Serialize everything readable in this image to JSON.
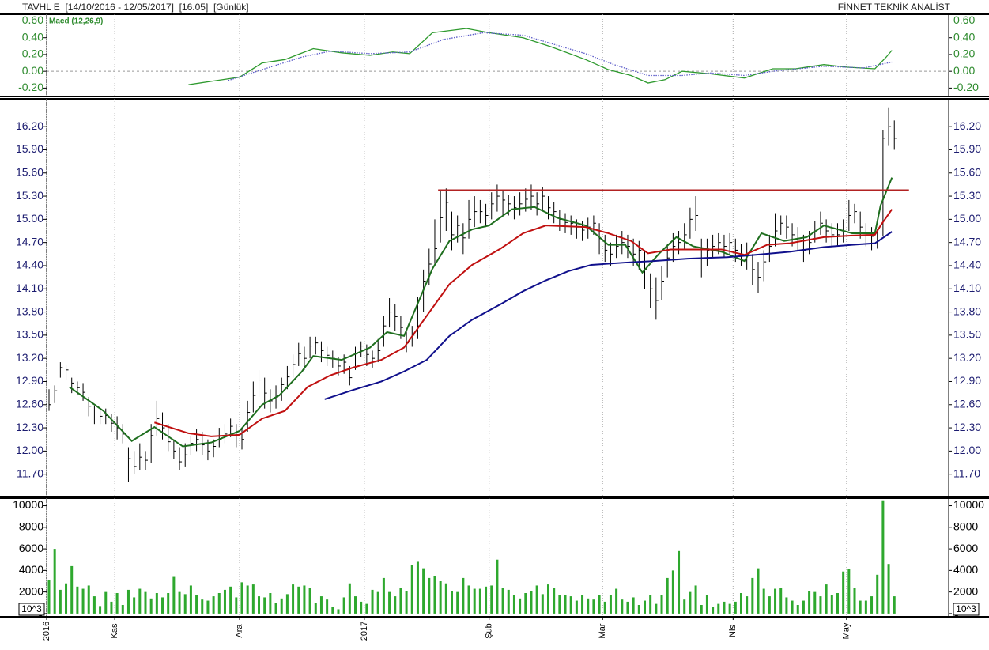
{
  "header": {
    "title": "TAVHL E  [14/10/2016 - 12/05/2017]  [16.05]  [Günlük]",
    "brand": "FİNNET TEKNİK ANALİST"
  },
  "chart_data": [
    {
      "type": "line",
      "label": "Macd (12,26,9)",
      "tick_color": "#2e8b2e",
      "xlim": [
        0,
        159
      ],
      "ylim": [
        -0.3,
        0.68
      ],
      "yticks": [
        {
          "value": 0.6,
          "label": "0.60"
        },
        {
          "value": 0.4,
          "label": "0.40"
        },
        {
          "value": 0.2,
          "label": "0.20"
        },
        {
          "value": 0,
          "label": "0.00"
        },
        {
          "value": -0.2,
          "label": "-0.20"
        }
      ],
      "zero_line": true,
      "series": [
        {
          "color": "#2e9a2e",
          "style": "solid",
          "x": [
            25,
            29,
            34,
            38,
            42,
            47,
            52,
            57,
            61,
            64,
            68,
            74,
            78,
            84,
            89,
            95,
            99,
            103,
            106,
            109,
            112,
            117,
            123,
            128,
            132,
            137,
            141,
            146,
            148,
            149
          ],
          "values": [
            -0.16,
            -0.12,
            -0.07,
            0.1,
            0.14,
            0.27,
            0.22,
            0.19,
            0.23,
            0.21,
            0.46,
            0.51,
            0.46,
            0.4,
            0.29,
            0.14,
            0.02,
            -0.05,
            -0.14,
            -0.1,
            0,
            -0.03,
            -0.08,
            0.03,
            0.03,
            0.08,
            0.05,
            0.03,
            0.17,
            0.25
          ]
        },
        {
          "color": "#5a5ac8",
          "style": "dotted",
          "x": [
            32,
            38,
            45,
            50,
            57,
            64,
            70,
            77,
            84,
            89,
            95,
            100,
            106,
            112,
            117,
            123,
            128,
            137,
            144,
            149
          ],
          "values": [
            -0.11,
            0.02,
            0.17,
            0.24,
            0.21,
            0.23,
            0.38,
            0.46,
            0.43,
            0.33,
            0.21,
            0.08,
            -0.05,
            -0.05,
            -0.02,
            -0.05,
            0,
            0.06,
            0.04,
            0.11
          ]
        }
      ]
    },
    {
      "type": "ohlc",
      "tick_color": "#1c1c70",
      "bar_color": "#000000",
      "xlim": [
        0,
        159
      ],
      "ylim": [
        11.41,
        16.56
      ],
      "yticks": [
        {
          "value": 16.2,
          "label": "16.20"
        },
        {
          "value": 15.9,
          "label": "15.90"
        },
        {
          "value": 15.6,
          "label": "15.60"
        },
        {
          "value": 15.3,
          "label": "15.30"
        },
        {
          "value": 15,
          "label": "15.00"
        },
        {
          "value": 14.7,
          "label": "14.70"
        },
        {
          "value": 14.4,
          "label": "14.40"
        },
        {
          "value": 14.1,
          "label": "14.10"
        },
        {
          "value": 13.8,
          "label": "13.80"
        },
        {
          "value": 13.5,
          "label": "13.50"
        },
        {
          "value": 13.2,
          "label": "13.20"
        },
        {
          "value": 12.9,
          "label": "12.90"
        },
        {
          "value": 12.6,
          "label": "12.60"
        },
        {
          "value": 12.3,
          "label": "12.30"
        },
        {
          "value": 12,
          "label": "12.00"
        },
        {
          "value": 11.7,
          "label": "11.70"
        }
      ],
      "high": [
        12.8,
        12.85,
        13.15,
        13.12,
        12.95,
        12.9,
        12.88,
        12.7,
        12.58,
        12.55,
        12.55,
        12.48,
        12.45,
        12.35,
        12.05,
        12.0,
        12.1,
        12.0,
        12.35,
        12.65,
        12.5,
        12.35,
        12.15,
        12.05,
        12.1,
        12.2,
        12.28,
        12.25,
        12.15,
        12.15,
        12.3,
        12.35,
        12.42,
        12.35,
        12.3,
        12.65,
        12.9,
        13.05,
        12.95,
        12.8,
        12.85,
        12.95,
        13.1,
        13.25,
        13.4,
        13.35,
        13.48,
        13.48,
        13.42,
        13.35,
        13.3,
        13.22,
        13.25,
        13.1,
        13.35,
        13.42,
        13.38,
        13.3,
        13.45,
        13.75,
        13.98,
        13.9,
        13.75,
        13.55,
        13.62,
        14.0,
        14.35,
        14.62,
        15.0,
        15.38,
        15.4,
        15.1,
        15.05,
        14.95,
        15.25,
        15.3,
        15.25,
        15.2,
        15.35,
        15.45,
        15.38,
        15.32,
        15.3,
        15.35,
        15.4,
        15.45,
        15.35,
        15.42,
        15.3,
        15.22,
        15.12,
        15.08,
        15.05,
        15.0,
        14.98,
        15.02,
        15.05,
        14.95,
        14.8,
        14.7,
        14.8,
        14.85,
        14.8,
        14.75,
        14.72,
        14.6,
        14.3,
        14.25,
        14.4,
        14.68,
        14.82,
        14.85,
        14.95,
        15.15,
        15.3,
        14.75,
        14.75,
        14.8,
        14.82,
        14.8,
        14.82,
        14.75,
        14.68,
        14.7,
        14.55,
        14.45,
        14.6,
        14.8,
        15.08,
        15.05,
        15.05,
        14.95,
        14.9,
        14.8,
        14.85,
        14.98,
        15.1,
        15.0,
        14.95,
        14.95,
        15.0,
        15.25,
        15.2,
        15.1,
        14.95,
        14.9,
        14.88,
        16.15,
        16.45,
        16.28
      ],
      "low": [
        12.52,
        12.62,
        12.95,
        12.92,
        12.75,
        12.72,
        12.65,
        12.45,
        12.35,
        12.35,
        12.35,
        12.25,
        12.15,
        12.1,
        11.6,
        11.7,
        11.75,
        11.75,
        11.85,
        12.2,
        12.15,
        12.0,
        11.9,
        11.75,
        11.8,
        11.95,
        12.0,
        11.95,
        11.88,
        11.92,
        12.05,
        12.1,
        12.18,
        12.05,
        12.02,
        12.25,
        12.5,
        12.7,
        12.55,
        12.5,
        12.55,
        12.65,
        12.8,
        12.95,
        13.1,
        13.05,
        13.2,
        13.25,
        13.15,
        13.1,
        13.08,
        12.98,
        13.0,
        12.85,
        13.05,
        13.22,
        13.1,
        13.08,
        13.15,
        13.35,
        13.6,
        13.55,
        13.45,
        13.28,
        13.35,
        13.45,
        13.8,
        14.15,
        14.4,
        14.7,
        14.85,
        14.6,
        14.7,
        14.55,
        14.75,
        14.9,
        14.95,
        14.9,
        15.0,
        15.1,
        15.05,
        15.05,
        15.0,
        15.05,
        15.1,
        15.12,
        15.05,
        15.12,
        15.0,
        14.95,
        14.85,
        14.82,
        14.8,
        14.75,
        14.72,
        14.75,
        14.8,
        14.55,
        14.45,
        14.4,
        14.5,
        14.55,
        14.5,
        14.4,
        14.35,
        14.1,
        13.85,
        13.7,
        13.95,
        14.25,
        14.45,
        14.55,
        14.62,
        14.75,
        14.85,
        14.25,
        14.4,
        14.5,
        14.55,
        14.5,
        14.55,
        14.45,
        14.4,
        14.35,
        14.15,
        14.05,
        14.2,
        14.45,
        14.65,
        14.8,
        14.75,
        14.65,
        14.6,
        14.45,
        14.55,
        14.7,
        14.8,
        14.7,
        14.65,
        14.65,
        14.7,
        14.85,
        14.95,
        14.75,
        14.65,
        14.6,
        14.62,
        14.78,
        15.95,
        15.9
      ],
      "close": [
        12.6,
        12.78,
        13.08,
        13.05,
        12.88,
        12.82,
        12.76,
        12.58,
        12.48,
        12.45,
        12.46,
        12.36,
        12.3,
        12.22,
        11.9,
        11.8,
        11.92,
        11.88,
        12.2,
        12.42,
        12.3,
        12.12,
        12.0,
        11.86,
        11.95,
        12.1,
        12.15,
        12.08,
        12.0,
        12.06,
        12.15,
        12.22,
        12.32,
        12.2,
        12.15,
        12.5,
        12.72,
        12.92,
        12.75,
        12.65,
        12.7,
        12.86,
        12.96,
        13.12,
        13.26,
        13.2,
        13.36,
        13.4,
        13.3,
        13.24,
        13.2,
        13.1,
        13.15,
        12.95,
        13.26,
        13.36,
        13.25,
        13.2,
        13.3,
        13.62,
        13.8,
        13.74,
        13.6,
        13.4,
        13.5,
        13.62,
        14.2,
        14.42,
        14.62,
        15.02,
        15.22,
        14.8,
        14.92,
        14.76,
        15.0,
        15.1,
        15.1,
        15.05,
        15.2,
        15.3,
        15.25,
        15.2,
        15.15,
        15.2,
        15.26,
        15.3,
        15.2,
        15.3,
        15.15,
        15.1,
        15.0,
        14.96,
        14.95,
        14.9,
        14.86,
        14.9,
        14.95,
        14.75,
        14.6,
        14.55,
        14.65,
        14.7,
        14.65,
        14.55,
        14.6,
        14.35,
        14.1,
        13.95,
        14.2,
        14.5,
        14.65,
        14.7,
        14.8,
        15.0,
        15.05,
        14.5,
        14.6,
        14.65,
        14.7,
        14.65,
        14.7,
        14.6,
        14.55,
        14.55,
        14.35,
        14.25,
        14.45,
        14.65,
        14.85,
        14.95,
        14.9,
        14.8,
        14.75,
        14.6,
        14.7,
        14.85,
        14.95,
        14.85,
        14.8,
        14.8,
        14.85,
        15.05,
        15.1,
        14.9,
        14.8,
        14.78,
        14.72,
        16.05,
        16.2,
        16.05
      ],
      "series": [
        {
          "color": "#1e6e1e",
          "x": [
            4,
            10,
            15,
            19,
            24,
            29,
            34,
            38,
            41,
            45,
            47,
            52,
            57,
            60,
            63,
            68,
            71,
            75,
            78,
            82,
            86,
            90,
            95,
            99,
            102,
            105,
            108,
            111,
            114,
            119,
            123,
            126,
            130,
            134,
            137,
            142,
            146,
            147,
            149
          ],
          "values": [
            12.83,
            12.52,
            12.13,
            12.31,
            12.06,
            12.11,
            12.26,
            12.6,
            12.72,
            13.03,
            13.23,
            13.18,
            13.34,
            13.54,
            13.49,
            14.36,
            14.72,
            14.87,
            14.92,
            15.13,
            15.16,
            15.02,
            14.92,
            14.67,
            14.67,
            14.31,
            14.56,
            14.77,
            14.65,
            14.58,
            14.46,
            14.82,
            14.72,
            14.77,
            14.92,
            14.82,
            14.82,
            15.18,
            15.54
          ]
        },
        {
          "color": "#c01010",
          "x": [
            19,
            25,
            29,
            34,
            38,
            42,
            46,
            50,
            54,
            59,
            63,
            67,
            71,
            75,
            80,
            84,
            88,
            95,
            99,
            103,
            106,
            110,
            114,
            119,
            123,
            127,
            131,
            137,
            142,
            146,
            147,
            149
          ],
          "values": [
            12.37,
            12.23,
            12.19,
            12.21,
            12.42,
            12.52,
            12.83,
            12.98,
            13.08,
            13.18,
            13.34,
            13.75,
            14.16,
            14.41,
            14.62,
            14.82,
            14.92,
            14.9,
            14.82,
            14.72,
            14.56,
            14.61,
            14.61,
            14.61,
            14.54,
            14.67,
            14.69,
            14.77,
            14.79,
            14.8,
            14.92,
            15.13
          ]
        },
        {
          "color": "#10108c",
          "x": [
            49,
            54,
            59,
            63,
            67,
            71,
            75,
            80,
            84,
            88,
            92,
            96,
            102,
            107,
            113,
            120,
            125,
            131,
            137,
            142,
            146,
            149
          ],
          "values": [
            12.67,
            12.79,
            12.9,
            13.03,
            13.18,
            13.49,
            13.7,
            13.9,
            14.07,
            14.21,
            14.33,
            14.41,
            14.44,
            14.46,
            14.49,
            14.51,
            14.54,
            14.58,
            14.64,
            14.67,
            14.69,
            14.84
          ]
        }
      ],
      "lines": [
        {
          "color": "#b22222",
          "x": [
            69,
            152
          ],
          "values": [
            15.38,
            15.38
          ]
        }
      ]
    },
    {
      "type": "bar",
      "tick_color": "#000000",
      "color": "#2ea82e",
      "unit_label": "10^3",
      "xlim": [
        0,
        159
      ],
      "ylim": [
        -300,
        10700
      ],
      "yticks": [
        10000,
        8000,
        6000,
        4000,
        2000,
        0
      ],
      "xticks": [
        {
          "value": 0,
          "label": "2016"
        },
        {
          "value": 12,
          "label": "Kas"
        },
        {
          "value": 34,
          "label": "Ara"
        },
        {
          "value": 56,
          "label": "2017"
        },
        {
          "value": 78,
          "label": "Şub"
        },
        {
          "value": 98,
          "label": "Mar"
        },
        {
          "value": 121,
          "label": "Nis"
        },
        {
          "value": 141,
          "label": "May"
        }
      ],
      "values": [
        3100,
        6000,
        2200,
        2800,
        4400,
        2500,
        2300,
        2600,
        1600,
        700,
        2000,
        1100,
        1900,
        800,
        2200,
        1500,
        2300,
        2000,
        1400,
        1900,
        1500,
        1900,
        3400,
        2000,
        1800,
        2600,
        1700,
        1300,
        1200,
        1600,
        1900,
        2200,
        2500,
        1500,
        2900,
        2600,
        2700,
        1600,
        1500,
        1900,
        1000,
        1400,
        1800,
        2700,
        2500,
        2600,
        2400,
        1000,
        1600,
        1300,
        600,
        400,
        1500,
        2800,
        1600,
        1100,
        900,
        2200,
        2000,
        3300,
        2000,
        1600,
        2400,
        2100,
        4500,
        4800,
        4200,
        3300,
        3500,
        3000,
        2800,
        2100,
        2000,
        3300,
        2600,
        2300,
        2300,
        2500,
        2600,
        5000,
        2400,
        2200,
        1700,
        1400,
        1900,
        2100,
        2600,
        1800,
        2700,
        2400,
        1700,
        1700,
        1600,
        1200,
        1700,
        1400,
        1300,
        1700,
        1100,
        1700,
        2300,
        1300,
        1100,
        1500,
        800,
        1200,
        1700,
        900,
        1700,
        3300,
        4000,
        5800,
        1300,
        2000,
        2600,
        800,
        1700,
        600,
        900,
        1100,
        900,
        1100,
        1900,
        1600,
        3300,
        4200,
        2300,
        1600,
        2300,
        2400,
        1500,
        1200,
        800,
        1200,
        2100,
        2000,
        1600,
        2700,
        1700,
        1900,
        3900,
        4100,
        2400,
        1200,
        1200,
        1600,
        3600,
        10500,
        4600,
        1600
      ]
    }
  ]
}
